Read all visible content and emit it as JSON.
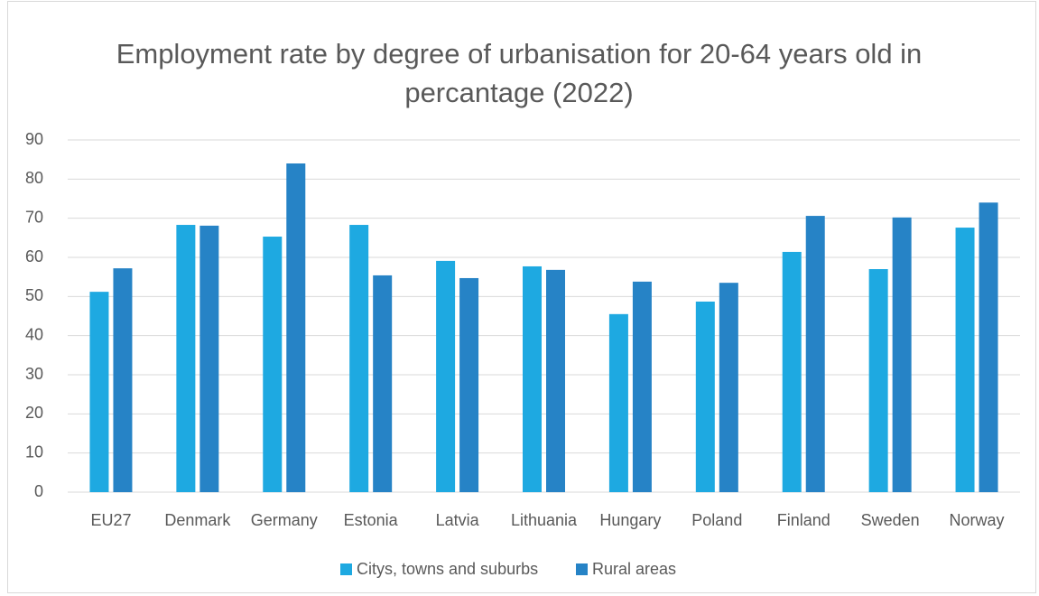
{
  "chart_data": {
    "type": "bar",
    "title": "Employment rate by degree of urbanisation for 20-64 years old in percantage (2022)",
    "categories": [
      "EU27",
      "Denmark",
      "Germany",
      "Estonia",
      "Latvia",
      "Lithuania",
      "Hungary",
      "Poland",
      "Finland",
      "Sweden",
      "Norway"
    ],
    "series": [
      {
        "name": "Citys, towns and suburbs",
        "color": "#1ea9e1",
        "values": [
          51.2,
          68.3,
          65.3,
          68.3,
          59.1,
          57.7,
          45.5,
          48.7,
          61.4,
          57.0,
          67.6
        ]
      },
      {
        "name": "Rural areas",
        "color": "#2683c6",
        "values": [
          57.2,
          68.1,
          84.0,
          55.4,
          54.7,
          56.8,
          53.8,
          53.5,
          70.6,
          70.2,
          74.0
        ]
      }
    ],
    "ylim": [
      0,
      90
    ],
    "yticks": [
      0,
      10,
      20,
      30,
      40,
      50,
      60,
      70,
      80,
      90
    ],
    "grid": true,
    "legend": "bottom"
  }
}
